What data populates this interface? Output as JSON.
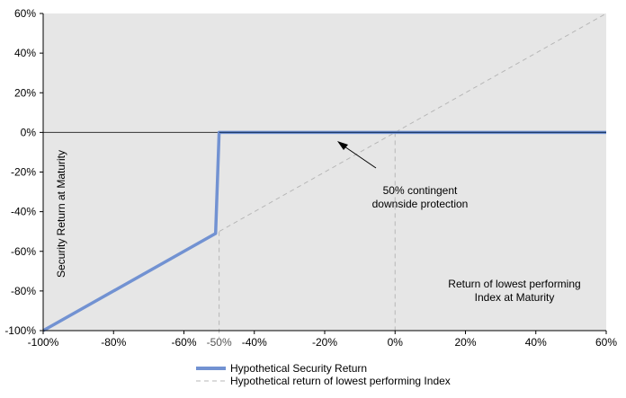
{
  "chart_data": {
    "type": "line",
    "title": "",
    "xlabel": "Return of lowest performing Index at Maturity",
    "ylabel": "Security Return at Maturity",
    "xlim": [
      -100,
      60
    ],
    "ylim": [
      -100,
      60
    ],
    "x_ticks": [
      "-100%",
      "-80%",
      "-60%",
      "-40%",
      "-20%",
      "0%",
      "20%",
      "40%",
      "60%"
    ],
    "y_ticks": [
      "60%",
      "40%",
      "20%",
      "0%",
      "-20%",
      "-40%",
      "-60%",
      "-80%",
      "-100%"
    ],
    "extra_x_tick": "-50%",
    "grid": false,
    "legend_position": "bottom",
    "series": [
      {
        "name": "Hypothetical Security Return",
        "style": "solid",
        "color": "#7292d2",
        "x": [
          -100,
          -51,
          -50,
          60
        ],
        "y": [
          -100,
          -51,
          0,
          0
        ]
      },
      {
        "name": "Hypothetical return of lowest performing Index",
        "style": "dashed",
        "color": "#b7b7b7",
        "x": [
          -100,
          60
        ],
        "y": [
          -100,
          60
        ]
      }
    ],
    "annotations": {
      "protection_line1": "50% contingent",
      "protection_line2": "downside protection",
      "xlabel_line1": "Return of lowest performing",
      "xlabel_line2": "Index at Maturity"
    },
    "reference_lines": [
      {
        "axis": "x",
        "value": -50,
        "style": "dashed"
      },
      {
        "axis": "x",
        "value": 0,
        "style": "dashed"
      },
      {
        "axis": "y",
        "value": 0,
        "style": "solid"
      }
    ],
    "colors": {
      "plot_background": "#e6e6e6",
      "zero_line": "#333333",
      "reference_dash": "#b7b7b7"
    }
  }
}
